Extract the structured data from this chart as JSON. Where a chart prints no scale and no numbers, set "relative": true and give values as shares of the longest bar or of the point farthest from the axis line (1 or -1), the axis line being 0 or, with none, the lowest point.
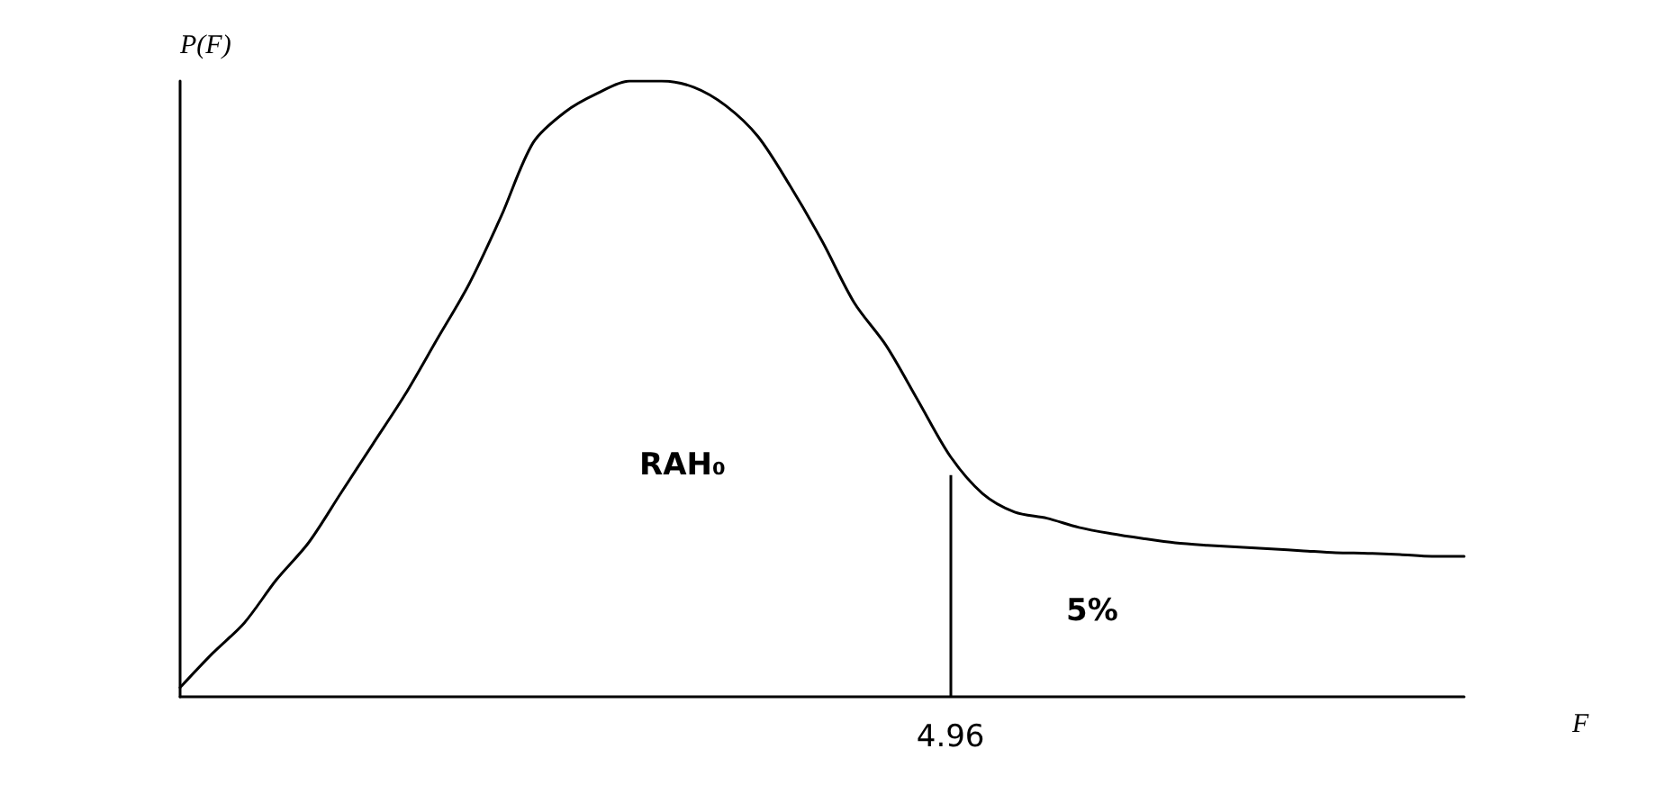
{
  "chart_data": {
    "type": "line",
    "relative": true,
    "xlabel": "F",
    "ylabel": "P(F)",
    "color": "#000000",
    "marker": "none",
    "grid": false,
    "categories": [
      null,
      null,
      null,
      null,
      null,
      null,
      null,
      null,
      null,
      null,
      null,
      null,
      null,
      null,
      null,
      null,
      null,
      null,
      null,
      null,
      null,
      null,
      null,
      null,
      null,
      null,
      null,
      null,
      null,
      null,
      null,
      null,
      null,
      null,
      null,
      null,
      null,
      null,
      null,
      null,
      null
    ],
    "values": [
      0.015,
      0.07,
      0.12,
      0.19,
      0.25,
      0.33,
      0.41,
      0.49,
      0.58,
      0.67,
      0.78,
      0.9,
      0.95,
      0.98,
      1.0,
      1.0,
      0.99,
      0.96,
      0.91,
      0.83,
      0.74,
      0.64,
      0.57,
      0.48,
      0.39,
      0.33,
      0.3,
      0.29,
      0.275,
      0.265,
      0.257,
      0.25,
      0.246,
      0.243,
      0.24,
      0.237,
      0.234,
      0.233,
      0.231,
      0.228,
      0.228
    ],
    "annotations": [
      "RAH₀",
      "5%",
      "4.96"
    ]
  }
}
